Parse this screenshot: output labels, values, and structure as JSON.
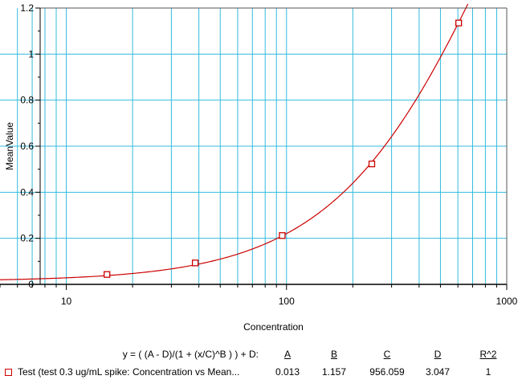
{
  "chart_data": {
    "type": "scatter",
    "title": "",
    "xlabel": "Concentration",
    "ylabel": "MeanValue",
    "xscale": "log",
    "xlim": [
      5,
      1000
    ],
    "ylim": [
      0,
      1.2
    ],
    "x_tick_labels": [
      "10",
      "100",
      "1000"
    ],
    "y_tick_labels": [
      "0",
      "0.2",
      "0.4",
      "0.6",
      "0.8",
      "1",
      "1.2"
    ],
    "grid": true,
    "colors": {
      "series": "#cc0000",
      "grid": "#33bbdd",
      "axis": "#000000"
    },
    "series": [
      {
        "name": "Test (test 0.3 ug/mL spike: Concentration vs Mean...",
        "marker": "square",
        "x": [
          15.3,
          38.5,
          95.6,
          244,
          605
        ],
        "y": [
          0.043,
          0.093,
          0.212,
          0.523,
          1.135
        ]
      }
    ],
    "fit": {
      "equation": "y = ( (A - D)/(1 + (x/C)^B ) ) + D:",
      "params": {
        "A": 0.013,
        "B": 1.157,
        "C": 956.059,
        "D": 3.047
      },
      "r2": 1
    }
  },
  "equation_panel": {
    "equation_label": "y = ( (A - D)/(1 + (x/C)^B ) ) + D:",
    "headers": [
      "A",
      "B",
      "C",
      "D",
      "R^2"
    ],
    "row": {
      "label": "Test (test 0.3 ug/mL spike: Concentration vs Mean...",
      "values": [
        "0.013",
        "1.157",
        "956.059",
        "3.047",
        "1"
      ]
    }
  }
}
